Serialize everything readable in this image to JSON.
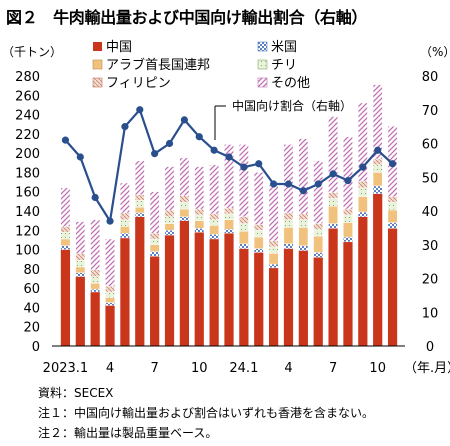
{
  "title": "図２　牛肉輸出量および中国向け輸出割合（右軸）",
  "left_unit": "（千トン）",
  "right_unit": "（%）",
  "x_unit": "（年.月）",
  "notes": [
    "資料：SECEX",
    "注１：中国向け輸出量および割合はいずれも香港を含まない。",
    "注２：輸出量は製品重量ベース。"
  ],
  "colors": {
    "china": "#c9361c",
    "usa": "#5b7fc4",
    "uae": "#f1c27d",
    "chile": "#e4f0d6",
    "philippines": "#e3b7a8",
    "other": "#c06fb2",
    "line": "#2a4f8f"
  },
  "chart_data": {
    "type": "bar",
    "stacked": true,
    "x_tick_labels": [
      "2023.1",
      "4",
      "7",
      "10",
      "24.1",
      "4",
      "7",
      "10"
    ],
    "x_tick_positions": [
      0,
      3,
      6,
      9,
      12,
      15,
      18,
      21
    ],
    "months": [
      "2023.1",
      "2023.2",
      "2023.3",
      "2023.4",
      "2023.5",
      "2023.6",
      "2023.7",
      "2023.8",
      "2023.9",
      "2023.10",
      "2023.11",
      "2023.12",
      "2024.1",
      "2024.2",
      "2024.3",
      "2024.4",
      "2024.5",
      "2024.6",
      "2024.7",
      "2024.8",
      "2024.9",
      "2024.10",
      "2024.11"
    ],
    "series": [
      {
        "name": "中国",
        "key": "china",
        "values": [
          100,
          72,
          56,
          42,
          112,
          134,
          93,
          115,
          130,
          118,
          111,
          117,
          101,
          97,
          81,
          101,
          99,
          92,
          122,
          108,
          134,
          158,
          122
        ]
      },
      {
        "name": "米国",
        "key": "usa",
        "values": [
          4,
          4,
          3,
          3,
          5,
          4,
          5,
          5,
          4,
          4,
          5,
          4,
          5,
          4,
          4,
          5,
          5,
          5,
          5,
          5,
          5,
          8,
          6
        ]
      },
      {
        "name": "アラブ首長国連邦",
        "key": "uae",
        "values": [
          7,
          6,
          6,
          5,
          7,
          6,
          7,
          7,
          8,
          8,
          9,
          10,
          13,
          12,
          11,
          17,
          19,
          17,
          18,
          15,
          16,
          14,
          13
        ]
      },
      {
        "name": "チリ",
        "key": "chile",
        "values": [
          7,
          7,
          7,
          6,
          7,
          7,
          6,
          7,
          7,
          6,
          6,
          6,
          8,
          7,
          7,
          8,
          8,
          7,
          8,
          8,
          9,
          8,
          8
        ]
      },
      {
        "name": "フィリピン",
        "key": "philippines",
        "values": [
          6,
          7,
          7,
          6,
          7,
          6,
          6,
          7,
          7,
          6,
          6,
          6,
          7,
          6,
          6,
          7,
          6,
          6,
          6,
          6,
          7,
          6,
          6
        ]
      },
      {
        "name": "その他",
        "key": "other",
        "values": [
          40,
          33,
          52,
          49,
          31,
          35,
          43,
          45,
          39,
          44,
          51,
          66,
          75,
          54,
          58,
          71,
          78,
          65,
          79,
          75,
          81,
          77,
          73
        ]
      }
    ],
    "line": {
      "name": "中国向け割合（右軸）",
      "values": [
        61,
        56,
        44,
        37,
        65,
        70,
        57,
        60,
        67,
        62,
        58,
        56,
        53,
        54,
        48,
        48,
        46,
        48,
        51,
        49,
        53,
        58,
        54
      ]
    },
    "ylim": [
      0,
      280
    ],
    "yticks": [
      0,
      20,
      40,
      60,
      80,
      100,
      120,
      140,
      160,
      180,
      200,
      220,
      240,
      260,
      280
    ],
    "y2lim": [
      0,
      80
    ],
    "y2ticks": [
      0,
      10,
      20,
      30,
      40,
      50,
      60,
      70,
      80
    ],
    "legend_placement": "top-left",
    "grid": false
  }
}
